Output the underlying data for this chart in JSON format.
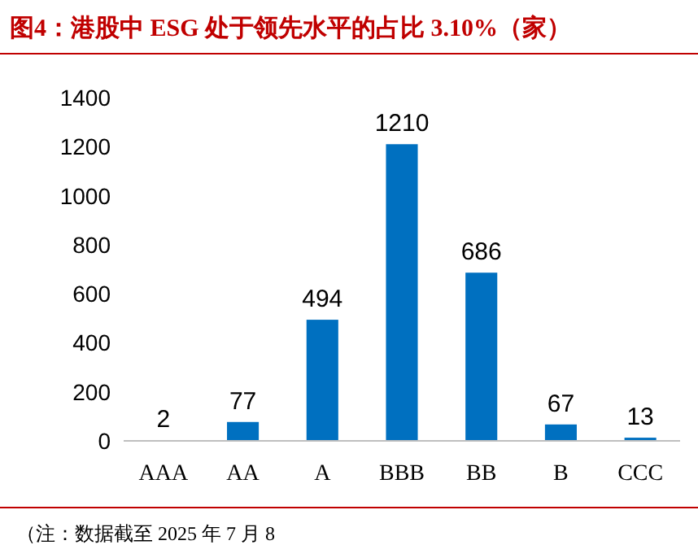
{
  "chart_data": {
    "type": "bar",
    "title": "图4：港股中 ESG 处于领先水平的占比 3.10%（家）",
    "categories": [
      "AAA",
      "AA",
      "A",
      "BBB",
      "BB",
      "B",
      "CCC"
    ],
    "values": [
      2,
      77,
      494,
      1210,
      686,
      67,
      13
    ],
    "color": "#0070c0",
    "ylim": [
      0,
      1400
    ],
    "yticks": [
      0,
      200,
      400,
      600,
      800,
      1000,
      1200,
      1400
    ],
    "data_labels": true,
    "annotations": [
      "（注：数据截至 2025 年 7 月 8"
    ]
  }
}
